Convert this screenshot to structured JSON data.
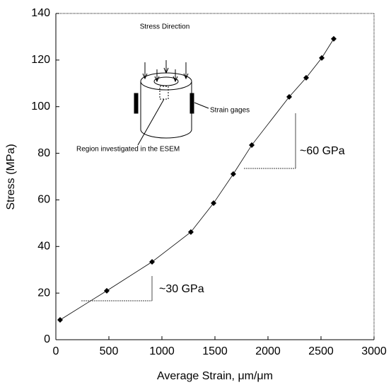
{
  "chart_data": {
    "type": "line",
    "x_label": "Average Strain, μm/μm",
    "y_label": "Stress (MPa)",
    "x": [
      40,
      480,
      907,
      1273,
      1487,
      1673,
      1847,
      2200,
      2360,
      2507,
      2620
    ],
    "values": [
      8.5,
      21,
      33.4,
      46.2,
      58.6,
      71.1,
      83.5,
      104.2,
      112.4,
      120.9,
      129.1
    ],
    "color": "#000000",
    "xlim": [
      0,
      3000
    ],
    "xticks": [
      0,
      500,
      1000,
      1500,
      2000,
      2500,
      3000
    ],
    "ylim": [
      0,
      140
    ],
    "yticks": [
      0,
      20,
      40,
      60,
      80,
      100,
      120,
      140
    ],
    "annotations": [
      "~30 GPa",
      "~60 GPa",
      "Stress Direction",
      "Strain gages",
      "Region investigated in the ESEM"
    ]
  }
}
